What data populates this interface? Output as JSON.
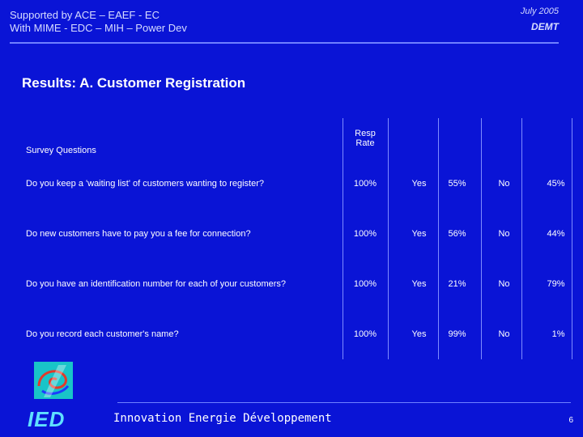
{
  "header": {
    "line1": "Supported by ACE – EAEF - EC",
    "line2": "With MIME - EDC – MIH – Power Dev",
    "date": "July 2005",
    "org": "DEMT"
  },
  "title": "Results:  A. Customer Registration",
  "table": {
    "col_question": "Survey Questions",
    "col_resp_line1": "Resp",
    "col_resp_line2": "Rate",
    "rows": [
      {
        "question": "Do you keep a 'waiting list' of customers wanting to register?",
        "rate": "100%",
        "yes": "Yes",
        "yes_pct": "55%",
        "no": "No",
        "no_pct": "45%"
      },
      {
        "question": "Do new customers have to pay you a fee for connection?",
        "rate": "100%",
        "yes": "Yes",
        "yes_pct": "56%",
        "no": "No",
        "no_pct": "44%"
      },
      {
        "question": "Do you have an identification number for each of your customers?",
        "rate": "100%",
        "yes": "Yes",
        "yes_pct": "21%",
        "no": "No",
        "no_pct": "79%"
      },
      {
        "question": "Do you record each customer's name?",
        "rate": "100%",
        "yes": "Yes",
        "yes_pct": "99%",
        "no": "No",
        "no_pct": "1%"
      }
    ]
  },
  "footer": {
    "logo": "IED",
    "company": "Innovation Energie Développement",
    "page": "6"
  },
  "colors": {
    "background": "#0a14d6",
    "text": "#ffffff",
    "logo_accent": "#19c4c8"
  }
}
